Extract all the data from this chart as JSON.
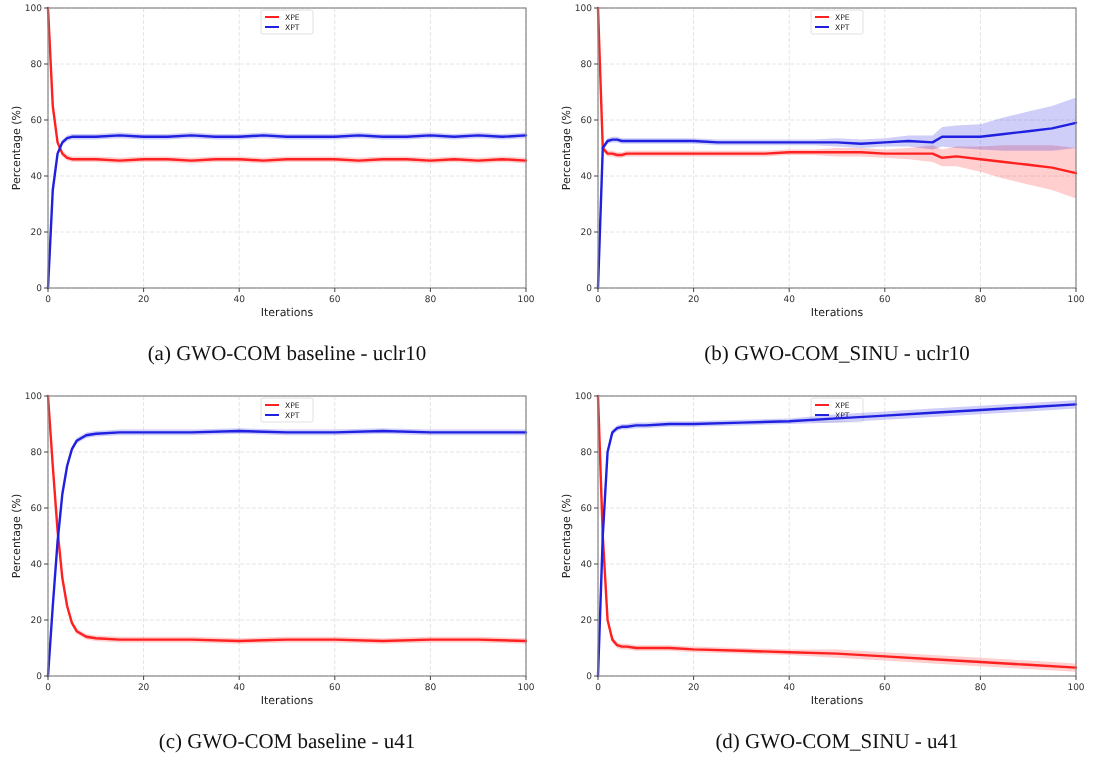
{
  "chart_data": [
    {
      "type": "line",
      "title": "(a) GWO-COM baseline - uclr10",
      "xlabel": "Iterations",
      "ylabel": "Percentage (%)",
      "x": [
        0,
        1,
        2,
        3,
        4,
        5,
        6,
        8,
        10,
        15,
        20,
        25,
        30,
        35,
        40,
        45,
        50,
        55,
        60,
        65,
        70,
        75,
        80,
        85,
        90,
        95,
        100
      ],
      "xlim": [
        0,
        100
      ],
      "ylim": [
        0,
        100
      ],
      "xticks": [
        0,
        20,
        40,
        60,
        80,
        100
      ],
      "yticks": [
        0,
        20,
        40,
        60,
        80,
        100
      ],
      "grid": true,
      "legend": "top",
      "series": [
        {
          "name": "XPE",
          "color": "#ff2020",
          "values": [
            100,
            65,
            52,
            48,
            46.5,
            46,
            46,
            46,
            46,
            45.5,
            46,
            46,
            45.5,
            46,
            46,
            45.5,
            46,
            46,
            46,
            45.5,
            46,
            46,
            45.5,
            46,
            45.5,
            46,
            45.5
          ],
          "lower": [
            100,
            64,
            51,
            47,
            45.5,
            45,
            45,
            45,
            45,
            44.5,
            45,
            45,
            44.5,
            45,
            45,
            44.5,
            45,
            45,
            45,
            44.5,
            45,
            45,
            44.5,
            45,
            44.5,
            45,
            44.5
          ],
          "upper": [
            100,
            66,
            53,
            49,
            47.5,
            47,
            47,
            47,
            47,
            46.5,
            47,
            47,
            46.5,
            47,
            47,
            46.5,
            47,
            47,
            47,
            46.5,
            47,
            47,
            46.5,
            47,
            46.5,
            47,
            46.5
          ]
        },
        {
          "name": "XPT",
          "color": "#2020e0",
          "values": [
            0,
            35,
            48,
            52,
            53.5,
            54,
            54,
            54,
            54,
            54.5,
            54,
            54,
            54.5,
            54,
            54,
            54.5,
            54,
            54,
            54,
            54.5,
            54,
            54,
            54.5,
            54,
            54.5,
            54,
            54.5
          ],
          "lower": [
            0,
            34,
            47,
            51,
            52.5,
            53,
            53,
            53,
            53,
            53.5,
            53,
            53,
            53.5,
            53,
            53,
            53.5,
            53,
            53,
            53,
            53.5,
            53,
            53,
            53.5,
            53,
            53.5,
            53,
            53.5
          ],
          "upper": [
            0,
            36,
            49,
            53,
            54.5,
            55,
            55,
            55,
            55,
            55.5,
            55,
            55,
            55.5,
            55,
            55,
            55.5,
            55,
            55,
            55,
            55.5,
            55,
            55,
            55.5,
            55,
            55.5,
            55,
            55.5
          ]
        }
      ]
    },
    {
      "type": "line",
      "title": "(b) GWO-COM_SINU - uclr10",
      "xlabel": "Iterations",
      "ylabel": "Percentage (%)",
      "x": [
        0,
        1,
        2,
        3,
        4,
        5,
        6,
        8,
        10,
        15,
        20,
        25,
        30,
        35,
        40,
        45,
        50,
        55,
        60,
        65,
        70,
        72,
        75,
        80,
        85,
        90,
        95,
        100
      ],
      "xlim": [
        0,
        100
      ],
      "ylim": [
        0,
        100
      ],
      "xticks": [
        0,
        20,
        40,
        60,
        80,
        100
      ],
      "yticks": [
        0,
        20,
        40,
        60,
        80,
        100
      ],
      "grid": true,
      "legend": "top",
      "series": [
        {
          "name": "XPE",
          "color": "#ff2020",
          "values": [
            100,
            50,
            48,
            48,
            47.5,
            47.5,
            48,
            48,
            48,
            48,
            48,
            48,
            48,
            48,
            48.5,
            48.5,
            48.5,
            48.5,
            48,
            48,
            48,
            46.5,
            47,
            46,
            45,
            44,
            43,
            41
          ],
          "lower": [
            100,
            49,
            47,
            47,
            46.5,
            46.5,
            47,
            47,
            47,
            47,
            47,
            47,
            47,
            47,
            47.5,
            47.5,
            47,
            47,
            46.5,
            46,
            45,
            43.5,
            43.5,
            41.5,
            39,
            37,
            35,
            32
          ],
          "upper": [
            100,
            51,
            49,
            49,
            48.5,
            48.5,
            49,
            49,
            49,
            49,
            49,
            49,
            49,
            49,
            49.5,
            49.5,
            50,
            50,
            49.5,
            50,
            51,
            49.5,
            50.5,
            50.5,
            51,
            51,
            51,
            50
          ]
        },
        {
          "name": "XPT",
          "color": "#2020e0",
          "values": [
            0,
            50,
            52.5,
            53,
            53,
            52.5,
            52.5,
            52.5,
            52.5,
            52.5,
            52.5,
            52,
            52,
            52,
            52,
            52,
            52,
            51.5,
            52,
            52.5,
            52,
            54,
            54,
            54,
            55,
            56,
            57,
            59
          ],
          "lower": [
            0,
            49,
            51.5,
            52,
            52,
            51.5,
            51.5,
            51.5,
            51.5,
            51.5,
            51.5,
            51,
            51,
            51,
            51,
            51,
            50.5,
            50,
            50.5,
            50.5,
            49.5,
            50.5,
            50,
            49.5,
            49,
            49,
            49,
            50
          ],
          "upper": [
            0,
            51,
            53.5,
            54,
            54,
            53.5,
            53.5,
            53.5,
            53.5,
            53.5,
            53.5,
            53,
            53,
            53,
            53,
            53,
            53.5,
            53,
            53.5,
            54.5,
            54.5,
            57.5,
            58,
            58.5,
            61,
            63,
            65,
            68
          ]
        }
      ]
    },
    {
      "type": "line",
      "title": "(c) GWO-COM baseline - u41",
      "xlabel": "Iterations",
      "ylabel": "Percentage (%)",
      "x": [
        0,
        1,
        2,
        3,
        4,
        5,
        6,
        8,
        10,
        15,
        20,
        30,
        40,
        50,
        60,
        70,
        80,
        90,
        100
      ],
      "xlim": [
        0,
        100
      ],
      "ylim": [
        0,
        100
      ],
      "xticks": [
        0,
        20,
        40,
        60,
        80,
        100
      ],
      "yticks": [
        0,
        20,
        40,
        60,
        80,
        100
      ],
      "grid": true,
      "legend": "top",
      "series": [
        {
          "name": "XPE",
          "color": "#ff2020",
          "values": [
            100,
            75,
            52,
            35,
            25,
            19,
            16,
            14,
            13.5,
            13,
            13,
            13,
            12.5,
            13,
            13,
            12.5,
            13,
            13,
            12.5
          ],
          "lower": [
            100,
            74,
            51,
            34,
            24,
            18,
            15,
            13,
            12.5,
            12,
            12,
            12,
            11.5,
            12,
            12,
            11.5,
            12,
            12,
            11.5
          ],
          "upper": [
            100,
            76,
            53,
            36,
            26,
            20,
            17,
            15,
            14.5,
            14,
            14,
            14,
            13.5,
            14,
            14,
            13.5,
            14,
            14,
            13.5
          ]
        },
        {
          "name": "XPT",
          "color": "#2020e0",
          "values": [
            0,
            25,
            48,
            65,
            75,
            81,
            84,
            86,
            86.5,
            87,
            87,
            87,
            87.5,
            87,
            87,
            87.5,
            87,
            87,
            87
          ],
          "lower": [
            0,
            24,
            47,
            64,
            74,
            80,
            83,
            85,
            85.5,
            86,
            86,
            86,
            86.5,
            86,
            86,
            86.5,
            86,
            86,
            86
          ],
          "upper": [
            0,
            26,
            49,
            66,
            76,
            82,
            85,
            87,
            87.5,
            88,
            88,
            88,
            88.5,
            88,
            88,
            88.5,
            88,
            88,
            88
          ]
        }
      ]
    },
    {
      "type": "line",
      "title": "(d) GWO-COM_SINU - u41",
      "xlabel": "Iterations",
      "ylabel": "Percentage (%)",
      "x": [
        0,
        1,
        2,
        3,
        4,
        5,
        6,
        8,
        10,
        15,
        20,
        30,
        40,
        50,
        60,
        70,
        80,
        90,
        100
      ],
      "xlim": [
        0,
        100
      ],
      "ylim": [
        0,
        100
      ],
      "xticks": [
        0,
        20,
        40,
        60,
        80,
        100
      ],
      "yticks": [
        0,
        20,
        40,
        60,
        80,
        100
      ],
      "grid": true,
      "legend": "top",
      "series": [
        {
          "name": "XPE",
          "color": "#ff2020",
          "values": [
            100,
            50,
            20,
            13,
            11,
            10.5,
            10.5,
            10,
            10,
            10,
            9.5,
            9,
            8.5,
            8,
            7,
            6,
            5,
            4,
            3
          ],
          "lower": [
            100,
            49,
            19,
            12,
            10,
            9.5,
            9.5,
            9,
            9,
            9,
            8.5,
            8,
            7.5,
            6.5,
            5.5,
            4.5,
            3.5,
            2.5,
            1.5
          ],
          "upper": [
            100,
            51,
            21,
            14,
            12,
            11.5,
            11.5,
            11,
            11,
            11,
            10.5,
            10,
            9.5,
            9.5,
            8.5,
            7.5,
            6.5,
            5.5,
            4.5
          ]
        },
        {
          "name": "XPT",
          "color": "#2020e0",
          "values": [
            0,
            50,
            80,
            87,
            88.5,
            89,
            89,
            89.5,
            89.5,
            90,
            90,
            90.5,
            91,
            92,
            93,
            94,
            95,
            96,
            97
          ],
          "lower": [
            0,
            49,
            79,
            86,
            87.5,
            88,
            88,
            88.5,
            88.5,
            89,
            89,
            89.5,
            90,
            90.5,
            91.5,
            92.5,
            93.5,
            94.5,
            95.5
          ],
          "upper": [
            0,
            51,
            81,
            88,
            89.5,
            90,
            90,
            90.5,
            90.5,
            91,
            91,
            91.5,
            92,
            93.5,
            94.5,
            95.5,
            96.5,
            97.5,
            98.5
          ]
        }
      ]
    }
  ]
}
